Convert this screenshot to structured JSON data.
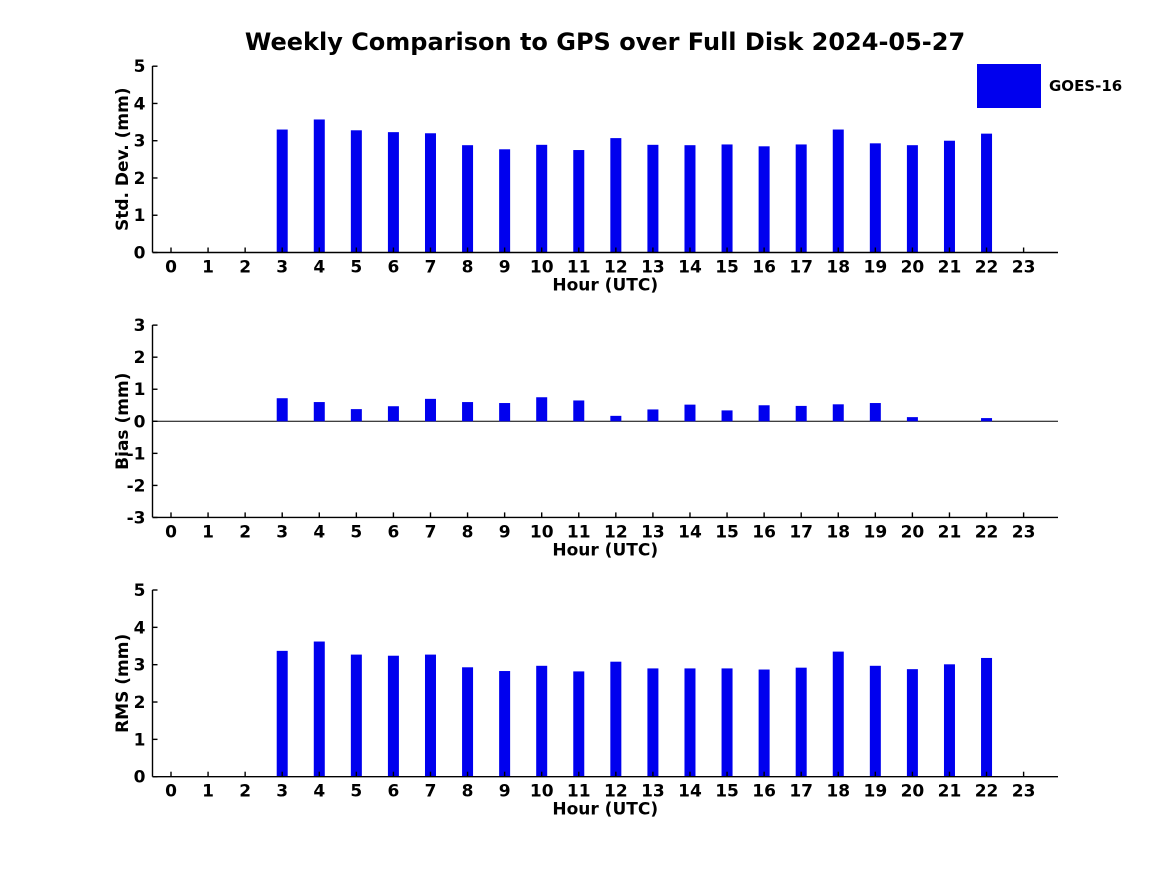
{
  "title": "Weekly Comparison to GPS over Full Disk 2024-05-27",
  "legend": {
    "label": "GOES-16",
    "swatch_color": "#0000ee",
    "position": "upper-right-outside"
  },
  "colors": {
    "bar": "#0000ee",
    "axis": "#000000",
    "text": "#000000",
    "background": "#ffffff"
  },
  "chart_data": [
    {
      "id": "std-dev",
      "type": "bar",
      "title": "",
      "xlabel": "Hour (UTC)",
      "ylabel": "Std. Dev. (mm)",
      "categories": [
        0,
        1,
        2,
        3,
        4,
        5,
        6,
        7,
        8,
        9,
        10,
        11,
        12,
        13,
        14,
        15,
        16,
        17,
        18,
        19,
        20,
        21,
        22,
        23
      ],
      "series": [
        {
          "name": "GOES-16",
          "color": "#0000ee",
          "values": [
            0,
            0,
            0,
            3.3,
            3.57,
            3.28,
            3.23,
            3.2,
            2.88,
            2.77,
            2.89,
            2.75,
            3.07,
            2.89,
            2.88,
            2.9,
            2.85,
            2.9,
            3.3,
            2.93,
            2.88,
            3.0,
            3.19,
            0
          ]
        }
      ],
      "ylim": [
        0,
        5
      ],
      "yticks": [
        0,
        1,
        2,
        3,
        4,
        5
      ],
      "grid": false,
      "zero_line": false
    },
    {
      "id": "bias",
      "type": "bar",
      "title": "",
      "xlabel": "Hour (UTC)",
      "ylabel": "Bias (mm)",
      "categories": [
        0,
        1,
        2,
        3,
        4,
        5,
        6,
        7,
        8,
        9,
        10,
        11,
        12,
        13,
        14,
        15,
        16,
        17,
        18,
        19,
        20,
        21,
        22,
        23
      ],
      "series": [
        {
          "name": "GOES-16",
          "color": "#0000ee",
          "values": [
            0,
            0,
            0,
            0.72,
            0.6,
            0.38,
            0.47,
            0.7,
            0.6,
            0.57,
            0.75,
            0.65,
            0.17,
            0.37,
            0.52,
            0.34,
            0.5,
            0.48,
            0.53,
            0.57,
            0.13,
            0,
            0.1,
            0
          ]
        }
      ],
      "ylim": [
        -3,
        3
      ],
      "yticks": [
        -3,
        -2,
        -1,
        0,
        1,
        2,
        3
      ],
      "grid": false,
      "zero_line": true
    },
    {
      "id": "rms",
      "type": "bar",
      "title": "",
      "xlabel": "Hour (UTC)",
      "ylabel": "RMS (mm)",
      "categories": [
        0,
        1,
        2,
        3,
        4,
        5,
        6,
        7,
        8,
        9,
        10,
        11,
        12,
        13,
        14,
        15,
        16,
        17,
        18,
        19,
        20,
        21,
        22,
        23
      ],
      "series": [
        {
          "name": "GOES-16",
          "color": "#0000ee",
          "values": [
            0,
            0,
            0,
            3.37,
            3.62,
            3.27,
            3.24,
            3.27,
            2.93,
            2.83,
            2.97,
            2.82,
            3.08,
            2.9,
            2.9,
            2.9,
            2.87,
            2.92,
            3.35,
            2.97,
            2.88,
            3.01,
            3.18,
            0
          ]
        }
      ],
      "ylim": [
        0,
        5
      ],
      "yticks": [
        0,
        1,
        2,
        3,
        4,
        5
      ],
      "grid": false,
      "zero_line": false
    }
  ]
}
